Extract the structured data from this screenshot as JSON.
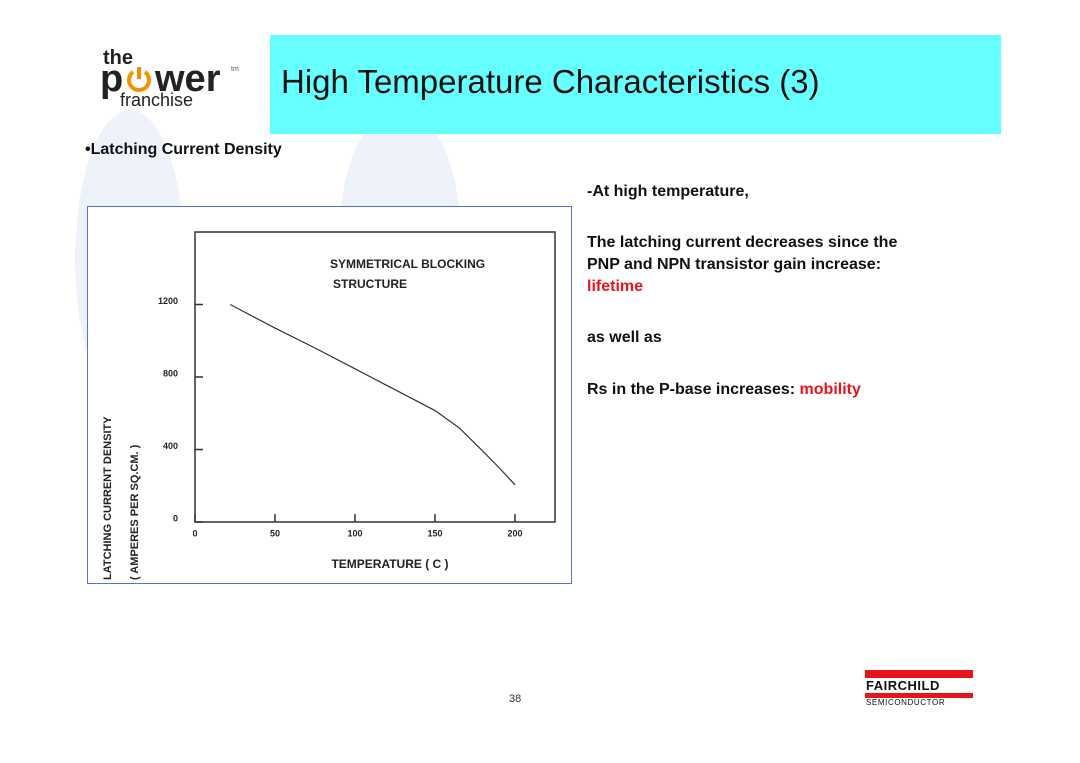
{
  "header": {
    "logo": {
      "top": "the",
      "left": "p",
      "right": "wer",
      "bottom": "franchise",
      "mark": "tm"
    },
    "title": "High Temperature Characteristics (3)"
  },
  "bullet": "•Latching Current Density",
  "notes": {
    "intro": "-At high temperature,",
    "line1": "The latching current decreases since the",
    "line2": "PNP and NPN transistor gain increase:",
    "cause1": "lifetime",
    "join": "as well as",
    "line3": "Rs in the P-base increases:",
    "cause2": "mobility"
  },
  "footer": {
    "page": "38",
    "brand": "FAIRCHILD",
    "subbrand": "SEMICONDUCTOR"
  },
  "chart_data": {
    "type": "line",
    "y_label": "LATCHING CURRENT DENSITY",
    "y_label_units": "( AMPERES PER SQ.CM. )",
    "x_label": "TEMPERATURE ( C )",
    "annotation": [
      "SYMMETRICAL BLOCKING",
      "STRUCTURE"
    ],
    "x": [
      22,
      50,
      75,
      100,
      125,
      150,
      165,
      180,
      190,
      200
    ],
    "values": [
      1200,
      1070,
      960,
      845,
      730,
      615,
      520,
      390,
      300,
      205
    ],
    "color": "#333333",
    "xlim": [
      0,
      225
    ],
    "xticks": [
      0,
      50,
      100,
      150,
      200
    ],
    "ylim": [
      0,
      1600
    ],
    "yticks": [
      0,
      400,
      800,
      1200
    ]
  }
}
